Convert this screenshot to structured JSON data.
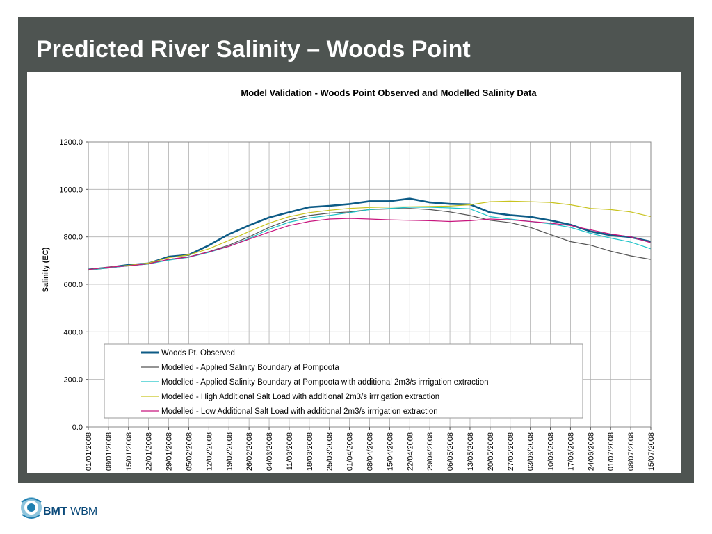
{
  "slide": {
    "title": "Predicted River Salinity – Woods Point"
  },
  "logo": {
    "brand": "BMT",
    "suffix": "WBM"
  },
  "chart_data": {
    "type": "line",
    "title": "Model Validation - Woods Point Observed and Modelled Salinity Data",
    "xlabel": "",
    "ylabel": "Salinity (EC)",
    "ylim": [
      0,
      1200
    ],
    "yticks": [
      "0.0",
      "200.0",
      "400.0",
      "600.0",
      "800.0",
      "1000.0",
      "1200.0"
    ],
    "x_start": "01/01/2008",
    "x_end": "15/07/2008",
    "x_tick_labels": [
      "01/01/2008",
      "08/01/2008",
      "15/01/2008",
      "22/01/2008",
      "29/01/2008",
      "05/02/2008",
      "12/02/2008",
      "19/02/2008",
      "26/02/2008",
      "04/03/2008",
      "11/03/2008",
      "18/03/2008",
      "25/03/2008",
      "01/04/2008",
      "08/04/2008",
      "15/04/2008",
      "22/04/2008",
      "29/04/2008",
      "06/05/2008",
      "13/05/2008",
      "20/05/2008",
      "27/05/2008",
      "03/06/2008",
      "10/06/2008",
      "17/06/2008",
      "24/06/2008",
      "01/07/2008",
      "08/07/2008",
      "15/07/2008"
    ],
    "grid": true,
    "legend_position": "bottom-center inside plot",
    "x_dates": [
      "01/01/2008",
      "08/01/2008",
      "15/01/2008",
      "22/01/2008",
      "29/01/2008",
      "05/02/2008",
      "12/02/2008",
      "19/02/2008",
      "26/02/2008",
      "04/03/2008",
      "11/03/2008",
      "18/03/2008",
      "25/03/2008",
      "01/04/2008",
      "08/04/2008",
      "15/04/2008",
      "22/04/2008",
      "29/04/2008",
      "06/05/2008",
      "13/05/2008",
      "20/05/2008",
      "27/05/2008",
      "03/06/2008",
      "10/06/2008",
      "17/06/2008",
      "24/06/2008",
      "01/07/2008",
      "08/07/2008",
      "15/07/2008"
    ],
    "series": [
      {
        "name": "Woods Pt. Observed",
        "color": "#0d5b86",
        "values": [
          662,
          672,
          680,
          690,
          715,
          725,
          765,
          810,
          850,
          880,
          905,
          925,
          930,
          940,
          948,
          952,
          960,
          945,
          940,
          935,
          905,
          890,
          885,
          870,
          850,
          825,
          805,
          800,
          780
        ]
      },
      {
        "name": "Modelled - Applied Salinity Boundary at Pompoota",
        "color": "#555555",
        "values": [
          660,
          670,
          678,
          686,
          705,
          716,
          738,
          765,
          800,
          840,
          872,
          890,
          900,
          905,
          915,
          918,
          920,
          915,
          905,
          890,
          870,
          860,
          840,
          810,
          780,
          765,
          740,
          720,
          705
        ]
      },
      {
        "name": "Modelled - Applied Salinity Boundary at Pompoota with additional 2m3/s irrrigation extraction",
        "color": "#1ec3c8",
        "values": [
          660,
          670,
          678,
          686,
          702,
          714,
          735,
          760,
          793,
          832,
          862,
          880,
          890,
          902,
          915,
          920,
          925,
          925,
          922,
          918,
          885,
          875,
          865,
          855,
          840,
          815,
          795,
          778,
          750
        ]
      },
      {
        "name": "Modelled - High Additional Salt Load with additional 2m3/s irrrigation extraction",
        "color": "#c8c31e",
        "values": [
          662,
          672,
          680,
          690,
          712,
          724,
          750,
          785,
          822,
          858,
          885,
          902,
          912,
          920,
          924,
          926,
          927,
          928,
          930,
          935,
          948,
          950,
          948,
          945,
          935,
          920,
          915,
          905,
          885
        ]
      },
      {
        "name": "Modelled - Low Additional Salt Load with additional 2m3/s irrrigation extraction",
        "color": "#c8167e",
        "values": [
          662,
          672,
          678,
          687,
          705,
          715,
          737,
          760,
          790,
          820,
          848,
          865,
          875,
          878,
          875,
          872,
          870,
          868,
          865,
          868,
          875,
          872,
          865,
          858,
          848,
          830,
          812,
          800,
          775
        ]
      }
    ]
  }
}
